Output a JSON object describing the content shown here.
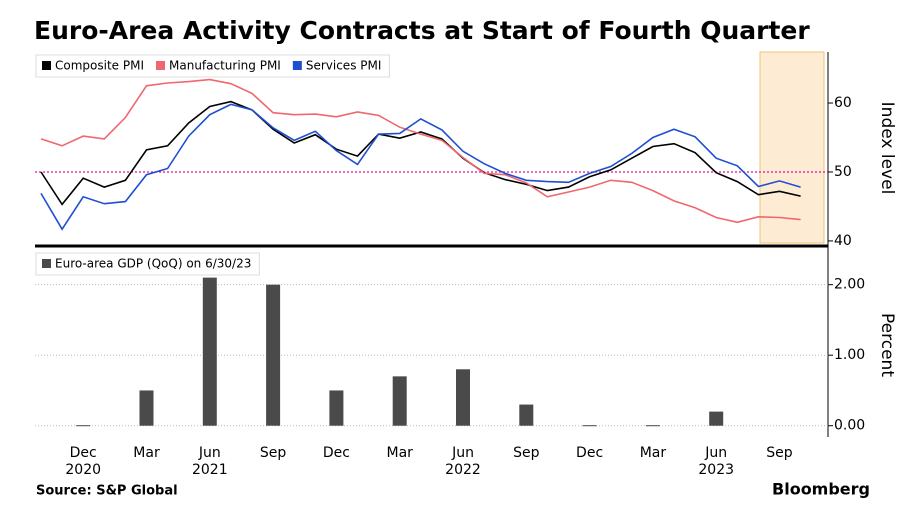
{
  "chart_data": [
    {
      "type": "line",
      "title": "Euro-Area Activity Contracts at Start of Fourth Quarter",
      "ylabel": "Index level",
      "ylim": [
        39.7,
        67.4
      ],
      "yticks": [
        40,
        50,
        60
      ],
      "grid": false,
      "hline": 50,
      "hline_color": "#e0119d",
      "series": [
        {
          "name": "Composite PMI",
          "color": "#000000",
          "values": [
            50.0,
            45.3,
            49.1,
            47.8,
            48.8,
            53.2,
            53.8,
            57.1,
            59.5,
            60.2,
            59.0,
            56.2,
            54.2,
            55.4,
            53.3,
            52.3,
            55.5,
            54.9,
            55.8,
            54.8,
            52.0,
            49.9,
            48.9,
            48.2,
            47.3,
            47.8,
            49.3,
            50.3,
            52.0,
            53.7,
            54.1,
            52.8,
            49.9,
            48.6,
            46.7,
            47.2,
            46.5
          ]
        },
        {
          "name": "Manufacturing PMI",
          "color": "#f0686e",
          "values": [
            54.8,
            53.8,
            55.2,
            54.8,
            57.9,
            62.5,
            62.9,
            63.1,
            63.4,
            62.8,
            61.4,
            58.6,
            58.3,
            58.4,
            58.0,
            58.7,
            58.2,
            56.5,
            55.5,
            54.6,
            52.1,
            49.8,
            49.6,
            48.4,
            46.4,
            47.1,
            47.8,
            48.8,
            48.5,
            47.3,
            45.8,
            44.8,
            43.4,
            42.7,
            43.5,
            43.4,
            43.1
          ]
        },
        {
          "name": "Services PMI",
          "color": "#1f4fd1",
          "values": [
            46.9,
            41.7,
            46.4,
            45.4,
            45.7,
            49.6,
            50.5,
            55.2,
            58.3,
            59.8,
            59.0,
            56.4,
            54.6,
            55.9,
            53.1,
            51.1,
            55.5,
            55.6,
            57.7,
            56.1,
            53.0,
            51.2,
            49.8,
            48.8,
            48.6,
            48.5,
            49.8,
            50.8,
            52.7,
            55.0,
            56.2,
            55.1,
            52.0,
            50.9,
            47.9,
            48.7,
            47.8
          ]
        }
      ]
    },
    {
      "type": "bar",
      "ylabel": "Percent",
      "source": "Source: S&P Global",
      "brand": "Bloomberg",
      "ylim": [
        -0.16,
        2.52
      ],
      "yticks": [
        {
          "value": 0,
          "label": "0.00"
        },
        {
          "value": 1,
          "label": "1.00"
        },
        {
          "value": 2,
          "label": "2.00"
        }
      ],
      "grid": true,
      "categories": [
        null,
        null,
        "Dec",
        null,
        null,
        "Mar",
        null,
        null,
        "Jun",
        null,
        null,
        "Sep",
        null,
        null,
        "Dec",
        null,
        null,
        "Mar",
        null,
        null,
        "Jun",
        null,
        null,
        "Sep",
        null,
        null,
        "Dec",
        null,
        null,
        "Mar",
        null,
        null,
        "Jun",
        null,
        null,
        "Sep",
        null
      ],
      "year_labels": [
        null,
        null,
        "2020",
        null,
        null,
        null,
        null,
        null,
        "2021",
        null,
        null,
        null,
        null,
        null,
        null,
        null,
        null,
        null,
        null,
        null,
        "2022",
        null,
        null,
        null,
        null,
        null,
        null,
        null,
        null,
        null,
        null,
        null,
        "2023",
        null,
        null,
        null,
        null
      ],
      "series": [
        {
          "name": "Euro-area GDP (QoQ) on 6/30/23",
          "color": "#4a4a4a",
          "values": [
            null,
            null,
            0.0,
            null,
            null,
            0.5,
            null,
            null,
            2.1,
            null,
            null,
            2.0,
            null,
            null,
            0.5,
            null,
            null,
            0.7,
            null,
            null,
            0.8,
            null,
            null,
            0.3,
            null,
            null,
            0.0,
            null,
            null,
            0.0,
            null,
            null,
            0.2,
            null,
            null,
            null,
            null
          ]
        }
      ]
    }
  ]
}
